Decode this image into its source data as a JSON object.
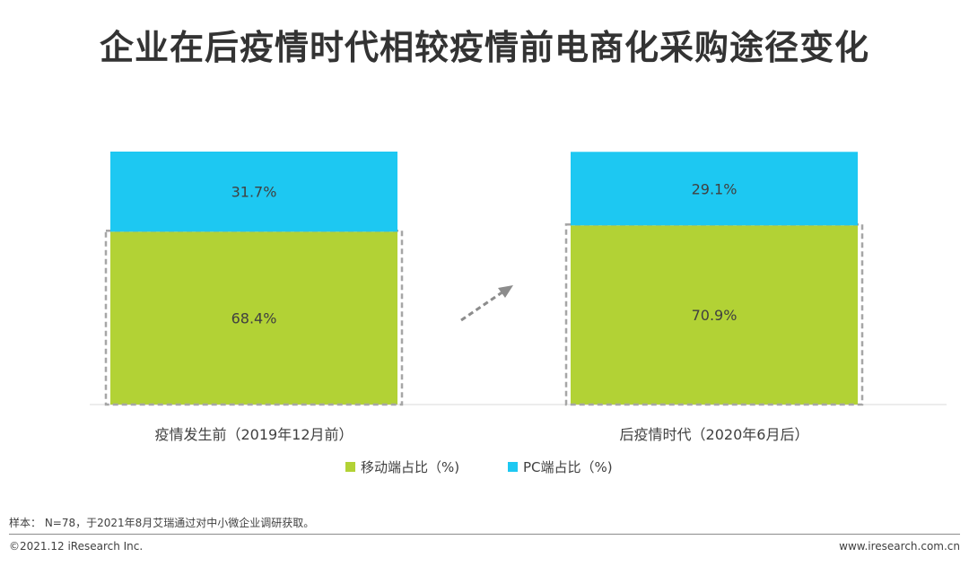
{
  "title": "企业在后疫情时代相较疫情前电商化采购途径变化",
  "chart_data": {
    "type": "bar",
    "stacked": true,
    "categories": [
      "疫情发生前（2019年12月前）",
      "后疫情时代（2020年6月后）"
    ],
    "series": [
      {
        "name": "移动端占比（%)",
        "color": "#b2d235",
        "values": [
          68.4,
          70.9
        ],
        "labels": [
          "68.4%",
          "70.9%"
        ]
      },
      {
        "name": "PC端占比（%)",
        "color": "#1dc8f2",
        "values": [
          31.7,
          29.1
        ],
        "labels": [
          "31.7%",
          "29.1%"
        ]
      }
    ],
    "ylim": [
      0,
      100.1
    ],
    "legend": "bottom-center",
    "grid": false
  },
  "footer": {
    "note": "样本： N=78，于2021年8月艾瑞通过对中小微企业调研获取。",
    "copyright": "©2021.12 iResearch Inc.",
    "website": "www.iresearch.com.cn"
  }
}
